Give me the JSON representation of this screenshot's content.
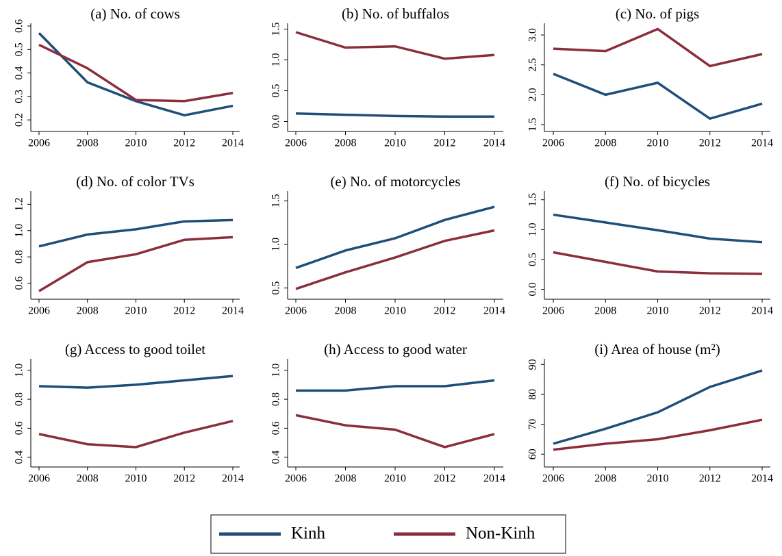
{
  "legend": {
    "series": [
      {
        "name": "Kinh",
        "color": "#1f4e79"
      },
      {
        "name": "Non-Kinh",
        "color": "#8b2e3b"
      }
    ]
  },
  "chart_data": [
    {
      "type": "line",
      "title": "(a) No. of cows",
      "x": [
        2006,
        2008,
        2010,
        2012,
        2014
      ],
      "xlim": [
        2006,
        2014
      ],
      "xticks": [
        2006,
        2008,
        2010,
        2012,
        2014
      ],
      "ylim": [
        0.18,
        0.6
      ],
      "yticks": [
        {
          "value": 0.2,
          "label": "0.2"
        },
        {
          "value": 0.3,
          "label": "0.3"
        },
        {
          "value": 0.4,
          "label": "0.4"
        },
        {
          "value": 0.5,
          "label": "0.5"
        },
        {
          "value": 0.6,
          "label": "0.6"
        }
      ],
      "series": [
        {
          "values": [
            0.57,
            0.36,
            0.28,
            0.22,
            0.26
          ]
        },
        {
          "values": [
            0.52,
            0.42,
            0.285,
            0.28,
            0.315
          ]
        }
      ]
    },
    {
      "type": "line",
      "title": "(b) No. of buffalos",
      "x": [
        2006,
        2008,
        2010,
        2012,
        2014
      ],
      "xlim": [
        2006,
        2014
      ],
      "xticks": [
        2006,
        2008,
        2010,
        2012,
        2014
      ],
      "ylim": [
        -0.05,
        1.55
      ],
      "yticks": [
        {
          "value": 0,
          "label": "0.0"
        },
        {
          "value": 0.5,
          "label": "0.5"
        },
        {
          "value": 1,
          "label": "1.0"
        },
        {
          "value": 1.5,
          "label": "1.5"
        }
      ],
      "series": [
        {
          "values": [
            0.13,
            0.11,
            0.09,
            0.08,
            0.08
          ]
        },
        {
          "values": [
            1.45,
            1.2,
            1.22,
            1.02,
            1.08
          ]
        }
      ]
    },
    {
      "type": "line",
      "title": "(c) No. of pigs",
      "x": [
        2006,
        2008,
        2010,
        2012,
        2014
      ],
      "xlim": [
        2006,
        2014
      ],
      "xticks": [
        2006,
        2008,
        2010,
        2012,
        2014
      ],
      "ylim": [
        1.5,
        3.15
      ],
      "yticks": [
        1.5,
        {
          "value": 2,
          "label": "2.0"
        },
        2.5,
        {
          "value": 3,
          "label": "3.0"
        }
      ],
      "series": [
        {
          "values": [
            2.35,
            2.0,
            2.2,
            1.6,
            1.85
          ]
        },
        {
          "values": [
            2.77,
            2.73,
            3.1,
            2.48,
            2.68
          ]
        }
      ]
    },
    {
      "type": "line",
      "title": "(d) No. of color TVs",
      "x": [
        2006,
        2008,
        2010,
        2012,
        2014
      ],
      "xlim": [
        2006,
        2014
      ],
      "xticks": [
        2006,
        2008,
        2010,
        2012,
        2014
      ],
      "ylim": [
        0.53,
        1.28
      ],
      "yticks": [
        {
          "value": 0.6,
          "label": "0.6"
        },
        {
          "value": 0.8,
          "label": "0.8"
        },
        {
          "value": 1,
          "label": "1.0"
        },
        {
          "value": 1.2,
          "label": "1.2"
        }
      ],
      "series": [
        {
          "values": [
            0.88,
            0.97,
            1.01,
            1.07,
            1.08
          ]
        },
        {
          "values": [
            0.54,
            0.76,
            0.82,
            0.93,
            0.95
          ]
        }
      ]
    },
    {
      "type": "line",
      "title": "(e) No. of motorcycles",
      "x": [
        2006,
        2008,
        2010,
        2012,
        2014
      ],
      "xlim": [
        2006,
        2014
      ],
      "xticks": [
        2006,
        2008,
        2010,
        2012,
        2014
      ],
      "ylim": [
        0.45,
        1.58
      ],
      "yticks": [
        0.5,
        {
          "value": 1,
          "label": "1.0"
        },
        1.5
      ],
      "series": [
        {
          "values": [
            0.73,
            0.93,
            1.07,
            1.28,
            1.43
          ]
        },
        {
          "values": [
            0.49,
            0.68,
            0.85,
            1.04,
            1.16
          ]
        }
      ]
    },
    {
      "type": "line",
      "title": "(f) No. of bicycles",
      "x": [
        2006,
        2008,
        2010,
        2012,
        2014
      ],
      "xlim": [
        2006,
        2014
      ],
      "xticks": [
        2006,
        2008,
        2010,
        2012,
        2014
      ],
      "ylim": [
        -0.05,
        1.6
      ],
      "yticks": [
        {
          "value": 0,
          "label": "0.0"
        },
        0.5,
        {
          "value": 1,
          "label": "1.0"
        },
        1.5
      ],
      "series": [
        {
          "values": [
            1.25,
            1.12,
            0.99,
            0.85,
            0.79
          ]
        },
        {
          "values": [
            0.62,
            0.46,
            0.3,
            0.27,
            0.26
          ]
        }
      ]
    },
    {
      "type": "line",
      "title": "(g) Access to good toilet",
      "x": [
        2006,
        2008,
        2010,
        2012,
        2014
      ],
      "xlim": [
        2006,
        2014
      ],
      "xticks": [
        2006,
        2008,
        2010,
        2012,
        2014
      ],
      "ylim": [
        0.38,
        1.06
      ],
      "yticks": [
        0.4,
        0.6,
        0.8,
        {
          "value": 1,
          "label": "1.0"
        }
      ],
      "series": [
        {
          "values": [
            0.89,
            0.88,
            0.9,
            0.93,
            0.96
          ]
        },
        {
          "values": [
            0.56,
            0.49,
            0.47,
            0.57,
            0.65
          ]
        }
      ]
    },
    {
      "type": "line",
      "title": "(h) Access to good water",
      "x": [
        2006,
        2008,
        2010,
        2012,
        2014
      ],
      "xlim": [
        2006,
        2014
      ],
      "xticks": [
        2006,
        2008,
        2010,
        2012,
        2014
      ],
      "ylim": [
        0.38,
        1.06
      ],
      "yticks": [
        0.4,
        0.6,
        0.8,
        {
          "value": 1,
          "label": "1.0"
        }
      ],
      "series": [
        {
          "values": [
            0.86,
            0.86,
            0.89,
            0.89,
            0.93
          ]
        },
        {
          "values": [
            0.69,
            0.62,
            0.59,
            0.47,
            0.56
          ]
        }
      ]
    },
    {
      "type": "line",
      "title": "(i) Area of house (m²)",
      "x": [
        2006,
        2008,
        2010,
        2012,
        2014
      ],
      "xlim": [
        2006,
        2014
      ],
      "xticks": [
        2006,
        2008,
        2010,
        2012,
        2014
      ],
      "ylim": [
        58,
        91
      ],
      "yticks": [
        60,
        70,
        80,
        90
      ],
      "series": [
        {
          "values": [
            63.5,
            68.5,
            74,
            82.5,
            88
          ]
        },
        {
          "values": [
            61.5,
            63.5,
            65,
            68,
            71.5
          ]
        }
      ]
    }
  ]
}
